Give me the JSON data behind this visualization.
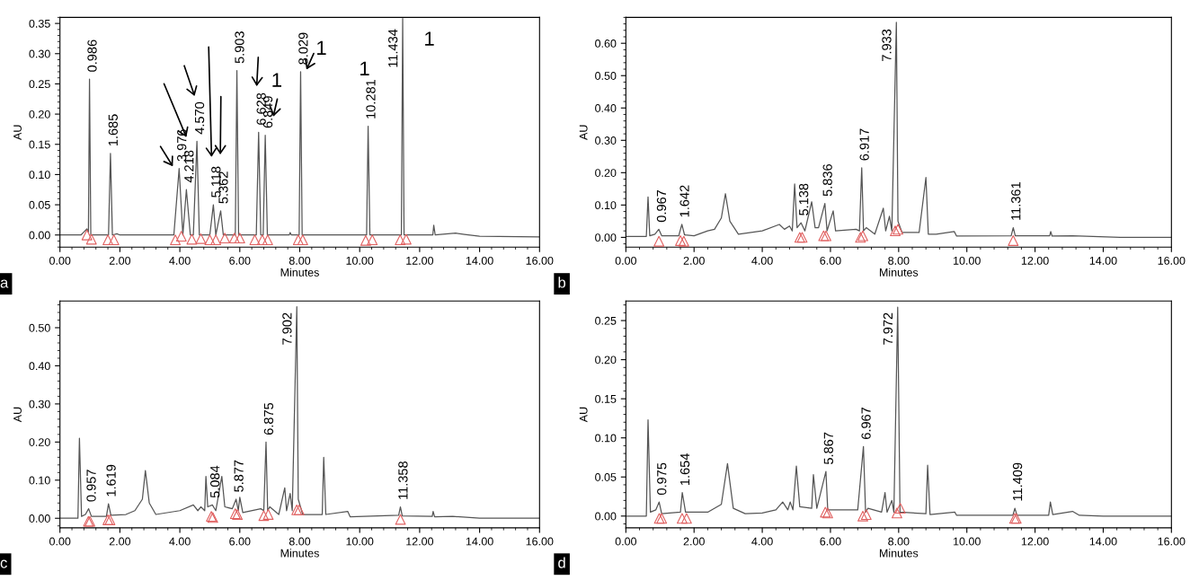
{
  "chart_data": [
    {
      "type": "line",
      "xlabel": "Minutes",
      "ylabel": "AU",
      "xlim": [
        0,
        16
      ],
      "ylim": [
        -0.02,
        0.36
      ],
      "grid": false,
      "xticks": [
        {
          "value": 0,
          "label": "0.00"
        },
        {
          "value": 2,
          "label": "2.00"
        },
        {
          "value": 4,
          "label": "4.00"
        },
        {
          "value": 6,
          "label": "6.00"
        },
        {
          "value": 8,
          "label": "8.00"
        },
        {
          "value": 10,
          "label": "10.00"
        },
        {
          "value": 12,
          "label": "12.00"
        },
        {
          "value": 14,
          "label": "14.00"
        },
        {
          "value": 16,
          "label": "16.00"
        }
      ],
      "yticks": [
        {
          "value": 0,
          "label": "0.00"
        },
        {
          "value": 0.05,
          "label": "0.05"
        },
        {
          "value": 0.1,
          "label": "0.10"
        },
        {
          "value": 0.15,
          "label": "0.15"
        },
        {
          "value": 0.2,
          "label": "0.20"
        },
        {
          "value": 0.25,
          "label": "0.25"
        },
        {
          "value": 0.3,
          "label": "0.30"
        },
        {
          "value": 0.35,
          "label": "0.35"
        }
      ],
      "series": [
        {
          "color": "#555555",
          "x": [
            0,
            0.7,
            0.8,
            0.9,
            0.95,
            0.986,
            1.03,
            1.2,
            1.62,
            1.685,
            1.75,
            1.9,
            2.0,
            3.8,
            3.976,
            4.1,
            4.218,
            4.35,
            4.45,
            4.57,
            4.65,
            5.0,
            5.118,
            5.2,
            5.362,
            5.45,
            5.85,
            5.903,
            5.96,
            6.55,
            6.628,
            6.7,
            6.78,
            6.849,
            6.92,
            7.65,
            7.68,
            7.72,
            7.98,
            8.029,
            8.08,
            10.23,
            10.281,
            10.34,
            11.39,
            11.434,
            11.48,
            12.44,
            12.47,
            12.52,
            13.2,
            13.5,
            14.0,
            16.0
          ],
          "values": [
            0,
            0,
            0.005,
            0.01,
            0.005,
            0.258,
            0,
            0,
            0,
            0.135,
            0,
            0.002,
            0,
            0,
            0.11,
            0,
            0.075,
            0,
            0,
            0.155,
            0,
            0,
            0.05,
            0,
            0.04,
            0,
            0,
            0.272,
            0,
            0,
            0.17,
            0,
            0,
            0.165,
            0,
            0,
            0.004,
            0,
            0,
            0.27,
            0,
            0,
            0.18,
            0,
            0,
            0.358,
            0,
            0,
            0.016,
            0,
            0.003,
            0.001,
            -0.002,
            -0.003
          ]
        },
        {
          "type": "scatter",
          "marker": "triangle",
          "color": "#e06060",
          "x": [
            0.9,
            1.05,
            1.6,
            1.8,
            3.85,
            4.05,
            4.4,
            4.7,
            5.0,
            5.2,
            5.5,
            5.82,
            6.0,
            6.5,
            6.75,
            6.93,
            7.95,
            8.1,
            10.2,
            10.42,
            11.35,
            11.55
          ],
          "values": [
            0,
            -0.007,
            -0.008,
            -0.008,
            -0.008,
            -0.002,
            -0.007,
            -0.006,
            -0.008,
            -0.008,
            -0.005,
            -0.005,
            -0.005,
            -0.008,
            -0.008,
            -0.008,
            -0.008,
            -0.008,
            -0.009,
            -0.008,
            -0.008,
            -0.007
          ]
        }
      ],
      "annotations": [
        "a",
        {
          "text": "0.986",
          "x": 0.986,
          "y": 0.258
        },
        {
          "text": "1.685",
          "x": 1.685,
          "y": 0.135
        },
        {
          "text": "3.976",
          "x": 3.976,
          "y": 0.11
        },
        {
          "text": "4.218",
          "x": 4.218,
          "y": 0.075
        },
        {
          "text": "4.570",
          "x": 4.57,
          "y": 0.155
        },
        {
          "text": "5.118",
          "x": 5.118,
          "y": 0.05
        },
        {
          "text": "5.362",
          "x": 5.362,
          "y": 0.04
        },
        {
          "text": "5.903",
          "x": 5.903,
          "y": 0.272
        },
        {
          "text": "6.628",
          "x": 6.628,
          "y": 0.17
        },
        {
          "text": "6.849",
          "x": 6.849,
          "y": 0.165
        },
        {
          "text": "8.029",
          "x": 8.029,
          "y": 0.27
        },
        {
          "text": "10.281",
          "x": 10.281,
          "y": 0.18
        },
        {
          "text": "11.434",
          "x": 11.434,
          "y": 0.358
        },
        "1",
        "1",
        "1",
        "1"
      ]
    },
    {
      "type": "line",
      "xlabel": "Minutes",
      "ylabel": "AU",
      "xlim": [
        0,
        16
      ],
      "ylim": [
        -0.03,
        0.68
      ],
      "grid": false,
      "xticks": [
        {
          "value": 0,
          "label": "0.00"
        },
        {
          "value": 2,
          "label": "2.00"
        },
        {
          "value": 4,
          "label": "4.00"
        },
        {
          "value": 6,
          "label": "6.00"
        },
        {
          "value": 8,
          "label": "8.00"
        },
        {
          "value": 10,
          "label": "10.00"
        },
        {
          "value": 12,
          "label": "12.00"
        },
        {
          "value": 14,
          "label": "14.00"
        },
        {
          "value": 16,
          "label": "16.00"
        }
      ],
      "yticks": [
        {
          "value": 0,
          "label": "0.00"
        },
        {
          "value": 0.1,
          "label": "0.10"
        },
        {
          "value": 0.2,
          "label": "0.20"
        },
        {
          "value": 0.3,
          "label": "0.30"
        },
        {
          "value": 0.4,
          "label": "0.40"
        },
        {
          "value": 0.5,
          "label": "0.50"
        },
        {
          "value": 0.6,
          "label": "0.60"
        }
      ],
      "series": [
        {
          "color": "#555555",
          "x": [
            0,
            0.6,
            0.65,
            0.7,
            0.85,
            0.967,
            1.05,
            1.55,
            1.642,
            1.72,
            2.0,
            2.4,
            2.6,
            2.8,
            2.92,
            3.05,
            3.3,
            4.0,
            4.5,
            4.65,
            4.8,
            4.88,
            4.95,
            5.02,
            5.138,
            5.25,
            5.45,
            5.55,
            5.65,
            5.836,
            5.9,
            6.08,
            6.15,
            6.75,
            6.85,
            6.917,
            6.97,
            7.05,
            7.3,
            7.55,
            7.62,
            7.73,
            7.8,
            7.933,
            7.98,
            8.1,
            8.6,
            8.8,
            8.87,
            9.1,
            9.63,
            9.7,
            11.3,
            11.361,
            11.42,
            12.43,
            12.46,
            12.5,
            13.1,
            14.5,
            16
          ],
          "values": [
            0.003,
            0.003,
            0.125,
            0.005,
            0.01,
            0.025,
            0.005,
            0.005,
            0.04,
            0.008,
            0.005,
            0.02,
            0.025,
            0.06,
            0.135,
            0.05,
            0.01,
            0.02,
            0.04,
            0.025,
            0.035,
            0.02,
            0.165,
            0.03,
            0.045,
            0.02,
            0.11,
            0.03,
            0.03,
            0.105,
            0.02,
            0.082,
            0.02,
            0.025,
            0.02,
            0.215,
            0.02,
            0.03,
            0.01,
            0.09,
            0.02,
            0.065,
            0.02,
            0.665,
            0.05,
            0.015,
            0.015,
            0.185,
            0.01,
            0.01,
            0.018,
            0.004,
            0.005,
            0.03,
            0.005,
            0.005,
            0.018,
            0.004,
            0.005,
            0,
            0
          ]
        },
        {
          "type": "scatter",
          "marker": "triangle",
          "color": "#e06060",
          "x": [
            0.97,
            1.6,
            1.7,
            5.1,
            5.17,
            5.8,
            5.87,
            6.88,
            6.95,
            7.9,
            7.98,
            11.36
          ],
          "values": [
            -0.012,
            -0.01,
            -0.012,
            0,
            0,
            0.005,
            0.005,
            0,
            0.005,
            0.02,
            0.025,
            -0.01
          ]
        }
      ],
      "annotations": [
        "b",
        {
          "text": "0.967",
          "x": 0.967,
          "y": 0.025
        },
        {
          "text": "1.642",
          "x": 1.642,
          "y": 0.04
        },
        {
          "text": "5.138",
          "x": 5.138,
          "y": 0.045
        },
        {
          "text": "5.836",
          "x": 5.836,
          "y": 0.105
        },
        {
          "text": "6.917",
          "x": 6.917,
          "y": 0.215
        },
        {
          "text": "7.933",
          "x": 7.933,
          "y": 0.665
        },
        {
          "text": "11.361",
          "x": 11.361,
          "y": 0.03
        }
      ]
    },
    {
      "type": "line",
      "xlabel": "Minutes",
      "ylabel": "AU",
      "xlim": [
        0,
        16
      ],
      "ylim": [
        -0.025,
        0.57
      ],
      "grid": false,
      "xticks": [
        {
          "value": 0,
          "label": "0.00"
        },
        {
          "value": 2,
          "label": "2.00"
        },
        {
          "value": 4,
          "label": "4.00"
        },
        {
          "value": 6,
          "label": "6.00"
        },
        {
          "value": 8,
          "label": "8.00"
        },
        {
          "value": 10,
          "label": "10.00"
        },
        {
          "value": 12,
          "label": "12.00"
        },
        {
          "value": 14,
          "label": "14.00"
        },
        {
          "value": 16,
          "label": "16.00"
        }
      ],
      "yticks": [
        {
          "value": 0,
          "label": "0.00"
        },
        {
          "value": 0.1,
          "label": "0.10"
        },
        {
          "value": 0.2,
          "label": "0.20"
        },
        {
          "value": 0.3,
          "label": "0.30"
        },
        {
          "value": 0.4,
          "label": "0.40"
        },
        {
          "value": 0.5,
          "label": "0.50"
        }
      ],
      "series": [
        {
          "color": "#555555",
          "x": [
            0,
            0.6,
            0.65,
            0.72,
            0.85,
            0.957,
            1.05,
            1.55,
            1.619,
            1.7,
            2.2,
            2.5,
            2.75,
            2.85,
            2.98,
            3.2,
            4.0,
            4.45,
            4.6,
            4.7,
            4.83,
            4.87,
            4.93,
            5.084,
            5.2,
            5.4,
            5.5,
            5.75,
            5.877,
            5.95,
            6.0,
            6.1,
            6.7,
            6.8,
            6.875,
            6.93,
            7.0,
            7.3,
            7.5,
            7.56,
            7.68,
            7.75,
            7.902,
            7.95,
            8.1,
            8.75,
            8.8,
            8.87,
            9.6,
            9.68,
            11.3,
            11.358,
            11.42,
            12.42,
            12.45,
            12.5,
            13.1,
            14.0,
            16
          ],
          "values": [
            0,
            0,
            0.21,
            0.005,
            0.01,
            0.025,
            0.005,
            0.005,
            0.038,
            0.008,
            0.01,
            0.02,
            0.05,
            0.125,
            0.04,
            0.01,
            0.02,
            0.035,
            0.02,
            0.03,
            0.02,
            0.11,
            0.03,
            0.035,
            0.02,
            0.11,
            0.03,
            0.025,
            0.05,
            0.02,
            0.055,
            0.015,
            0.025,
            0.02,
            0.2,
            0.02,
            0.03,
            0.01,
            0.08,
            0.02,
            0.065,
            0.02,
            0.555,
            0.05,
            0.01,
            0.01,
            0.16,
            0.01,
            0.018,
            0.004,
            0.008,
            0.03,
            0.006,
            0.005,
            0.018,
            0.004,
            0.005,
            0,
            0
          ]
        },
        {
          "type": "scatter",
          "marker": "triangle",
          "color": "#e06060",
          "x": [
            0.95,
            1.0,
            1.6,
            1.67,
            5.05,
            5.1,
            5.85,
            5.92,
            6.8,
            6.95,
            7.9,
            7.98,
            11.36
          ],
          "values": [
            -0.008,
            -0.008,
            -0.004,
            -0.004,
            0.005,
            0.002,
            0.012,
            0.01,
            0.007,
            0.01,
            0.022,
            0.022,
            -0.003
          ]
        }
      ],
      "annotations": [
        "c",
        {
          "text": "0.957",
          "x": 0.957,
          "y": 0.025
        },
        {
          "text": "1.619",
          "x": 1.619,
          "y": 0.038
        },
        {
          "text": "5.084",
          "x": 5.084,
          "y": 0.035
        },
        {
          "text": "5.877",
          "x": 5.877,
          "y": 0.05
        },
        {
          "text": "6.875",
          "x": 6.875,
          "y": 0.2
        },
        {
          "text": "7.902",
          "x": 7.902,
          "y": 0.555
        },
        {
          "text": "11.358",
          "x": 11.358,
          "y": 0.03
        }
      ]
    },
    {
      "type": "line",
      "xlabel": "Minutes",
      "ylabel": "AU",
      "xlim": [
        0,
        16
      ],
      "ylim": [
        -0.015,
        0.275
      ],
      "grid": false,
      "xticks": [
        {
          "value": 0,
          "label": "0.00"
        },
        {
          "value": 2,
          "label": "2.00"
        },
        {
          "value": 4,
          "label": "4.00"
        },
        {
          "value": 6,
          "label": "6.00"
        },
        {
          "value": 8,
          "label": "8.00"
        },
        {
          "value": 10,
          "label": "10.00"
        },
        {
          "value": 12,
          "label": "12.00"
        },
        {
          "value": 14,
          "label": "14.00"
        },
        {
          "value": 16,
          "label": "16.00"
        }
      ],
      "yticks": [
        {
          "value": 0,
          "label": "0.00"
        },
        {
          "value": 0.05,
          "label": "0.05"
        },
        {
          "value": 0.1,
          "label": "0.10"
        },
        {
          "value": 0.15,
          "label": "0.15"
        },
        {
          "value": 0.2,
          "label": "0.20"
        },
        {
          "value": 0.25,
          "label": "0.25"
        }
      ],
      "series": [
        {
          "color": "#555555",
          "x": [
            0,
            0.6,
            0.65,
            0.72,
            0.88,
            0.975,
            1.05,
            1.6,
            1.654,
            1.75,
            2.4,
            2.8,
            2.98,
            3.15,
            3.5,
            4.0,
            4.4,
            4.6,
            4.75,
            4.82,
            4.9,
            5.0,
            5.1,
            5.45,
            5.5,
            5.6,
            5.867,
            5.92,
            6.3,
            6.8,
            6.967,
            7.03,
            7.1,
            7.5,
            7.6,
            7.66,
            7.8,
            7.86,
            7.972,
            8.04,
            8.8,
            8.85,
            8.92,
            9.65,
            9.7,
            11.35,
            11.409,
            11.47,
            12.4,
            12.45,
            12.52,
            13.1,
            13.3,
            14.0,
            16
          ],
          "values": [
            0,
            0,
            0.123,
            0.005,
            0.008,
            0.018,
            0.003,
            0.005,
            0.03,
            0.005,
            0.005,
            0.015,
            0.067,
            0.01,
            0.003,
            0.004,
            0.008,
            0.018,
            0.008,
            0.018,
            0.008,
            0.064,
            0.012,
            0.01,
            0.053,
            0.01,
            0.057,
            0.008,
            0.008,
            0.008,
            0.089,
            0.005,
            0.01,
            0.005,
            0.03,
            0.005,
            0.02,
            0.005,
            0.267,
            0.005,
            0.003,
            0.065,
            0.002,
            0.005,
            0.001,
            0.001,
            0.01,
            0.001,
            0.001,
            0.018,
            0.002,
            0.006,
            0.001,
            0,
            0
          ]
        },
        {
          "type": "scatter",
          "marker": "triangle",
          "color": "#e06060",
          "x": [
            0.98,
            1.05,
            1.65,
            1.78,
            5.85,
            5.92,
            6.95,
            7.05,
            7.95,
            8.05,
            11.4,
            11.45
          ],
          "values": [
            -0.003,
            -0.003,
            -0.003,
            -0.003,
            0.005,
            0.004,
            0,
            0.002,
            0.004,
            0.01,
            -0.003,
            -0.003
          ]
        }
      ],
      "annotations": [
        "d",
        {
          "text": "0.975",
          "x": 0.975,
          "y": 0.018
        },
        {
          "text": "1.654",
          "x": 1.654,
          "y": 0.03
        },
        {
          "text": "5.867",
          "x": 5.867,
          "y": 0.057
        },
        {
          "text": "6.967",
          "x": 6.967,
          "y": 0.089
        },
        {
          "text": "7.972",
          "x": 7.972,
          "y": 0.267
        },
        {
          "text": "11.409",
          "x": 11.409,
          "y": 0.01
        }
      ]
    }
  ]
}
